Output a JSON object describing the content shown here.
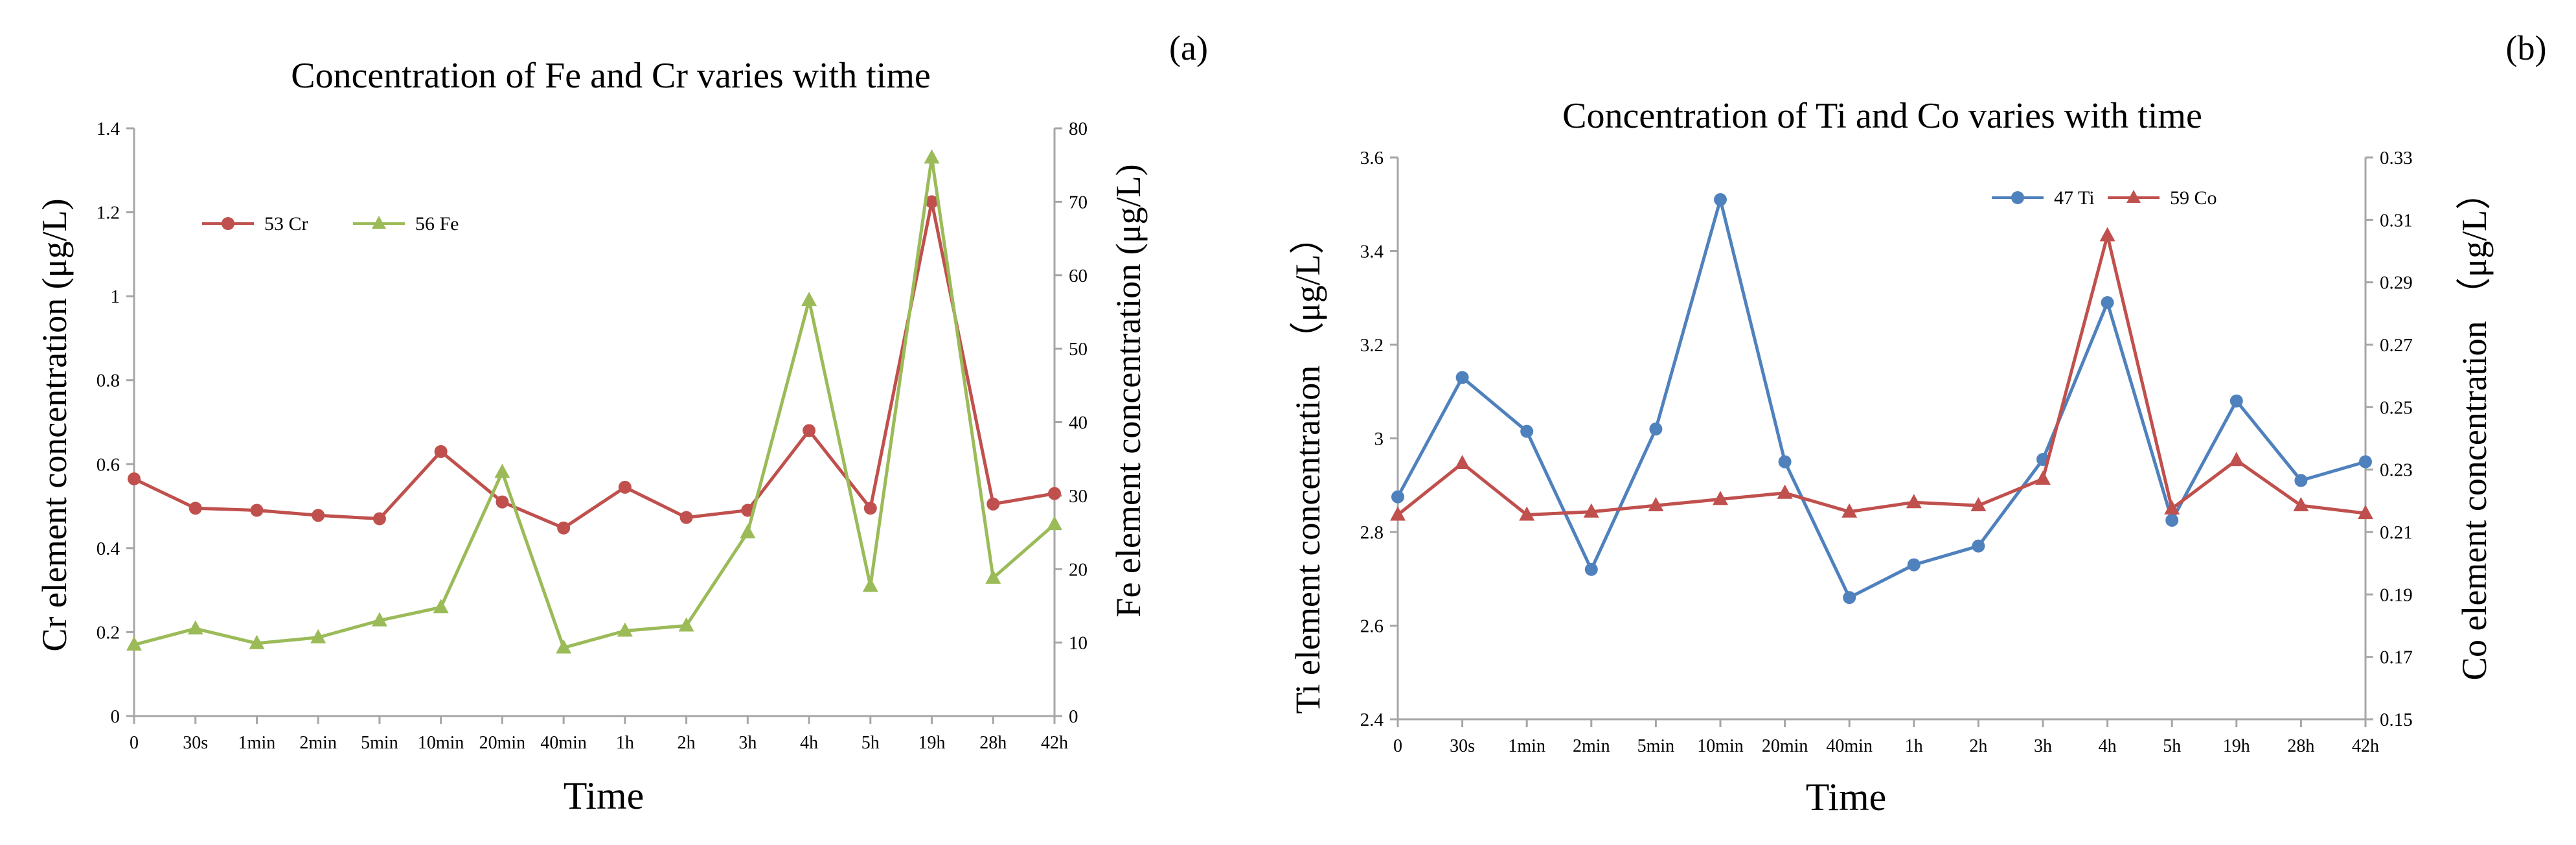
{
  "panel_labels": {
    "a": "(a)",
    "b": "(b)"
  },
  "colors": {
    "cr": "#C0504D",
    "fe": "#9BBB59",
    "ti": "#4F81BD",
    "co": "#C0504D",
    "axis": "#a6a6a6",
    "grid": "#d9d9d9"
  },
  "chart_data": [
    {
      "type": "line",
      "title": "Concentration of Fe and Cr varies with time",
      "xlabel": "Time",
      "ylabel_left": "Cr element concentration (μg/L)",
      "ylabel_right": "Fe element concentration (μg/L)",
      "categories": [
        "0",
        "30s",
        "1min",
        "2min",
        "5min",
        "10min",
        "20min",
        "40min",
        "1h",
        "2h",
        "3h",
        "4h",
        "5h",
        "19h",
        "28h",
        "42h"
      ],
      "ylim_left": [
        0,
        1.4
      ],
      "yticks_left": [
        "0",
        "0.2",
        "0.4",
        "0.6",
        "0.8",
        "1",
        "1.2",
        "1.4"
      ],
      "ylim_right": [
        0,
        80
      ],
      "yticks_right": [
        "0",
        "10",
        "20",
        "30",
        "40",
        "50",
        "60",
        "70",
        "80"
      ],
      "legend": [
        "53 Cr",
        "56 Fe"
      ],
      "series": [
        {
          "name": "53 Cr",
          "axis": "left",
          "marker": "circle",
          "values": [
            0.565,
            0.495,
            0.49,
            0.478,
            0.47,
            0.63,
            0.51,
            0.448,
            0.545,
            0.473,
            0.49,
            0.68,
            0.495,
            1.225,
            0.505,
            0.53
          ]
        },
        {
          "name": "56 Fe",
          "axis": "right",
          "marker": "triangle",
          "values": [
            9.7,
            11.9,
            9.9,
            10.7,
            13.0,
            14.8,
            33.2,
            9.3,
            11.6,
            12.3,
            25.0,
            56.6,
            17.7,
            76.0,
            18.8,
            26.1
          ]
        }
      ]
    },
    {
      "type": "line",
      "title": "Concentration of Ti and Co varies with time",
      "xlabel": "Time",
      "ylabel_left": "Ti element concentration （μg/L）",
      "ylabel_right": "Co element concentration （μg/L）",
      "categories": [
        "0",
        "30s",
        "1min",
        "2min",
        "5min",
        "10min",
        "20min",
        "40min",
        "1h",
        "2h",
        "3h",
        "4h",
        "5h",
        "19h",
        "28h",
        "42h"
      ],
      "ylim_left": [
        2.4,
        3.6
      ],
      "yticks_left": [
        "2.4",
        "2.6",
        "2.8",
        "3",
        "3.2",
        "3.4",
        "3.6"
      ],
      "ylim_right": [
        0.15,
        0.33
      ],
      "yticks_right": [
        "0.15",
        "0.17",
        "0.19",
        "0.21",
        "0.23",
        "0.25",
        "0.27",
        "0.29",
        "0.31",
        "0.33"
      ],
      "legend": [
        "47 Ti",
        "59 Co"
      ],
      "series": [
        {
          "name": "47 Ti",
          "axis": "left",
          "marker": "circle",
          "values": [
            2.875,
            3.13,
            3.015,
            2.72,
            3.02,
            3.51,
            2.95,
            2.66,
            2.73,
            2.77,
            2.955,
            3.29,
            2.825,
            3.08,
            2.91,
            2.95
          ]
        },
        {
          "name": "59 Co",
          "axis": "right",
          "marker": "triangle",
          "values": [
            0.2155,
            0.232,
            0.2155,
            0.2165,
            0.2185,
            0.2205,
            0.2225,
            0.2165,
            0.2195,
            0.2185,
            0.227,
            0.305,
            0.2175,
            0.233,
            0.2185,
            0.216
          ]
        }
      ]
    }
  ]
}
